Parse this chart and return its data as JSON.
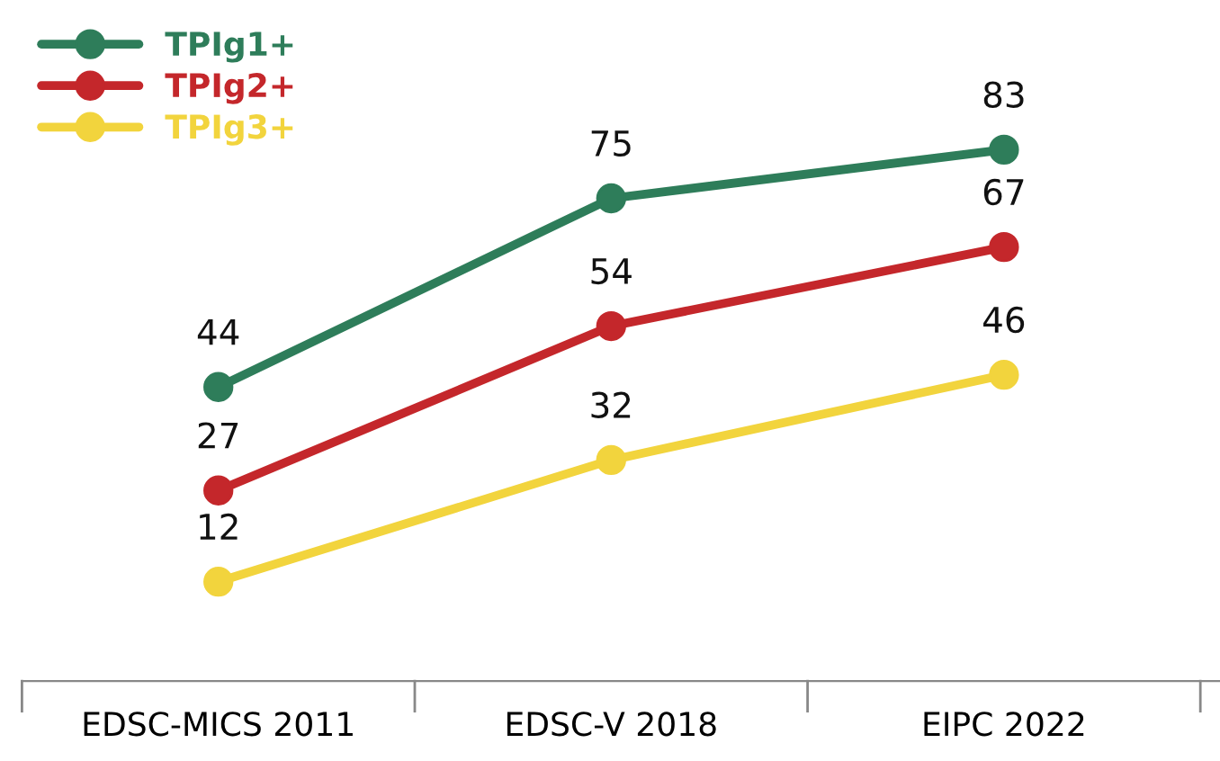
{
  "chart_data": {
    "type": "line",
    "categories": [
      "EDSC-MICS 2011",
      "EDSC-V 2018",
      "EIPC 2022"
    ],
    "series": [
      {
        "name": "TPIg1+",
        "color": "#2e7d5a",
        "values": [
          44,
          75,
          83
        ]
      },
      {
        "name": "TPIg2+",
        "color": "#c4272b",
        "values": [
          27,
          54,
          67
        ]
      },
      {
        "name": "TPIg3+",
        "color": "#f2d43d",
        "values": [
          12,
          32,
          46
        ]
      }
    ],
    "data_labels": true,
    "marker": "circle",
    "line_style": "solid",
    "legend": "top left",
    "grid": false
  }
}
